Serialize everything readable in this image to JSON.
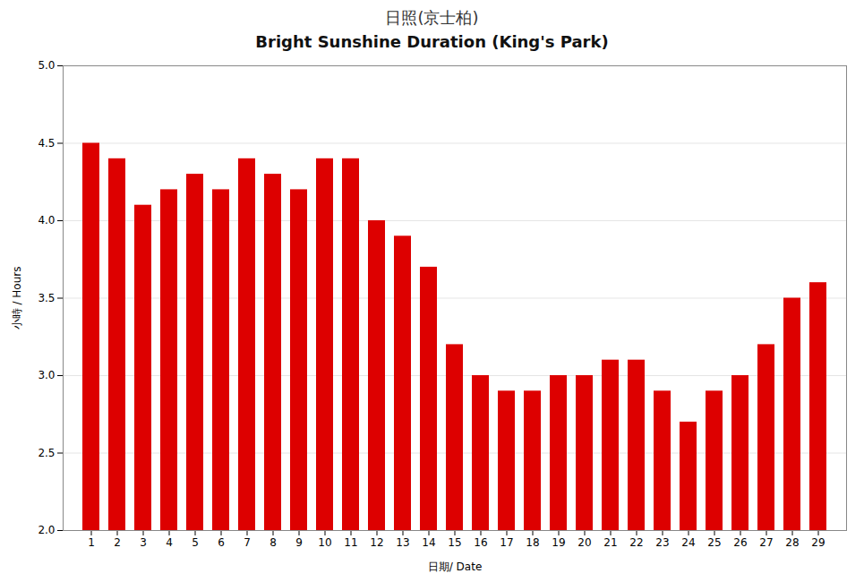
{
  "chart_data": {
    "type": "bar",
    "title": "日照(京士柏)",
    "subtitle": "Bright Sunshine  Duration (King's Park)",
    "xlabel": "日期/ Date",
    "ylabel": "小時 / Hours",
    "categories": [
      1,
      2,
      3,
      4,
      5,
      6,
      7,
      8,
      9,
      10,
      11,
      12,
      13,
      14,
      15,
      16,
      17,
      18,
      19,
      20,
      21,
      22,
      23,
      24,
      25,
      26,
      27,
      28,
      29
    ],
    "values": [
      4.5,
      4.4,
      4.1,
      4.2,
      4.3,
      4.2,
      4.4,
      4.3,
      4.2,
      4.4,
      4.4,
      4.0,
      3.9,
      3.7,
      3.2,
      3.0,
      2.9,
      2.9,
      3.0,
      3.0,
      3.1,
      3.1,
      2.9,
      2.7,
      2.9,
      3.0,
      3.2,
      3.5,
      3.6
    ],
    "color": "#dd0000",
    "ylim": [
      2.0,
      5.0
    ],
    "yticks": [
      {
        "value": 2.0,
        "label": "2.0"
      },
      2.5,
      {
        "value": 3.0,
        "label": "3.0"
      },
      3.5,
      {
        "value": 4.0,
        "label": "4.0"
      },
      4.5,
      {
        "value": 5.0,
        "label": "5.0"
      }
    ],
    "grid": true
  }
}
